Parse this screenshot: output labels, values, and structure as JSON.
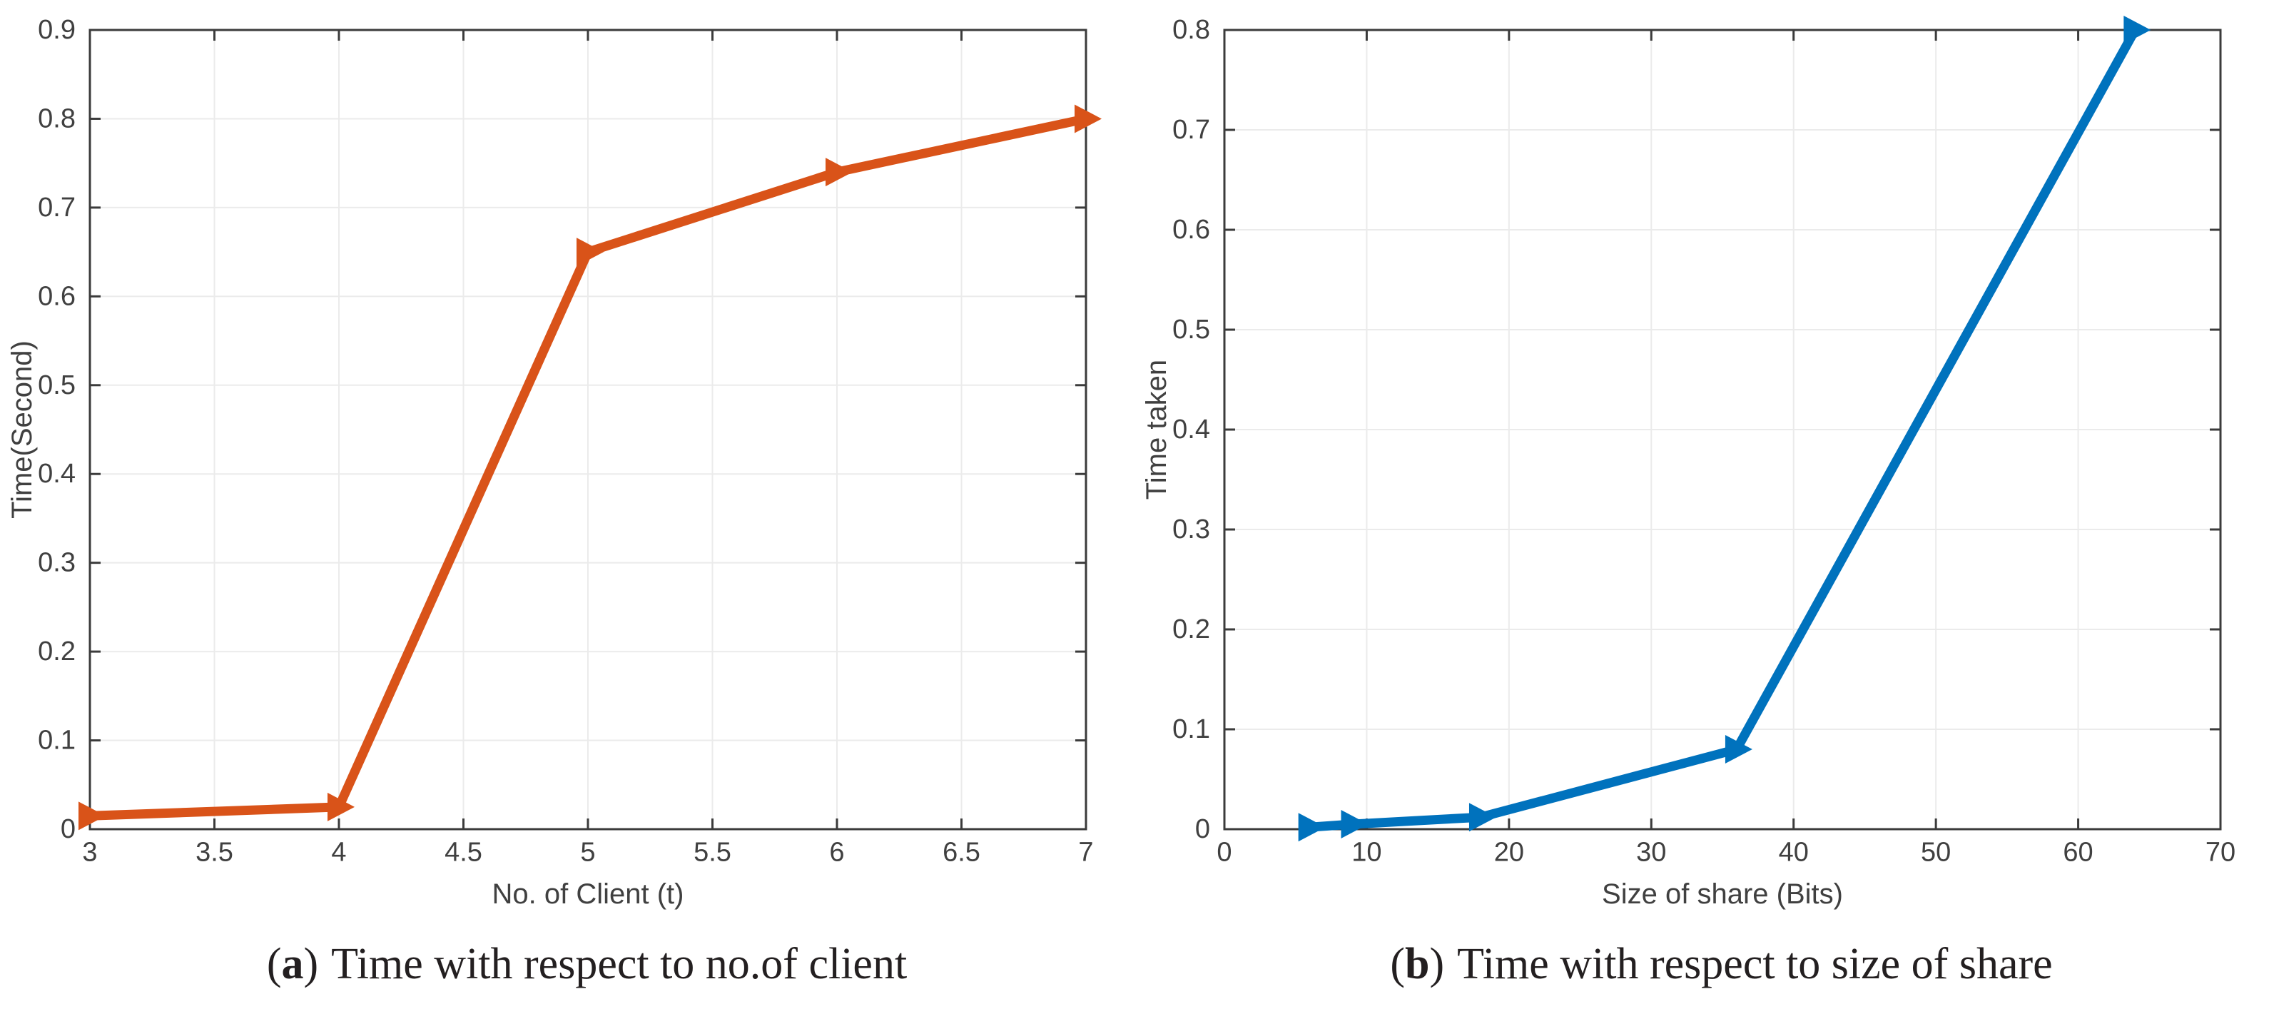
{
  "page": {
    "background": "#ffffff"
  },
  "style": {
    "axis_box_color": "#3b3b3b",
    "tick_label_color": "#404040",
    "axis_label_color": "#404040",
    "grid_color": "#ebebeb",
    "caption_color": "#231f20",
    "accent_orange": "#D95319",
    "accent_blue": "#0072BD"
  },
  "chart_data": [
    {
      "id": "a",
      "type": "line",
      "title": "",
      "xlabel": "No. of Client (t)",
      "ylabel": "Time(Second)",
      "xlim": [
        3,
        7
      ],
      "ylim": [
        0,
        0.9
      ],
      "xticks": [
        3,
        3.5,
        4,
        4.5,
        5,
        5.5,
        6,
        6.5,
        7
      ],
      "xtick_labels": [
        "3",
        "3.5",
        "4",
        "4.5",
        "5",
        "5.5",
        "6",
        "6.5",
        "7"
      ],
      "yticks": [
        0,
        0.1,
        0.2,
        0.3,
        0.4,
        0.5,
        0.6,
        0.7,
        0.8,
        0.9
      ],
      "ytick_labels": [
        "0",
        "0.1",
        "0.2",
        "0.3",
        "0.4",
        "0.5",
        "0.6",
        "0.7",
        "0.8",
        "0.9"
      ],
      "grid": true,
      "legend": "none",
      "series": [
        {
          "name": "time-vs-no-of-client",
          "x": [
            3,
            4,
            5,
            6,
            7
          ],
          "y": [
            0.015,
            0.025,
            0.65,
            0.74,
            0.8
          ],
          "color": "#D95319",
          "marker": "right-triangle",
          "line_width": 13
        }
      ],
      "caption": {
        "open": "(",
        "letter": "a",
        "close": ")",
        "text": "Time with respect to no.of client"
      }
    },
    {
      "id": "b",
      "type": "line",
      "title": "",
      "xlabel": "Size of share (Bits)",
      "ylabel": "Time taken",
      "xlim": [
        0,
        70
      ],
      "ylim": [
        0,
        0.8
      ],
      "xticks": [
        0,
        10,
        20,
        30,
        40,
        50,
        60,
        70
      ],
      "xtick_labels": [
        "0",
        "10",
        "20",
        "30",
        "40",
        "50",
        "60",
        "70"
      ],
      "yticks": [
        0,
        0.1,
        0.2,
        0.3,
        0.4,
        0.5,
        0.6,
        0.7,
        0.8
      ],
      "ytick_labels": [
        "0",
        "0.1",
        "0.2",
        "0.3",
        "0.4",
        "0.5",
        "0.6",
        "0.7",
        "0.8"
      ],
      "grid": true,
      "legend": "none",
      "series": [
        {
          "name": "time-vs-share-size",
          "x": [
            6,
            9,
            18,
            36,
            64
          ],
          "y": [
            0.002,
            0.005,
            0.012,
            0.08,
            0.8
          ],
          "color": "#0072BD",
          "marker": "right-triangle",
          "line_width": 13
        }
      ],
      "caption": {
        "open": "(",
        "letter": "b",
        "close": ")",
        "text": "Time with respect to size of share"
      }
    }
  ]
}
